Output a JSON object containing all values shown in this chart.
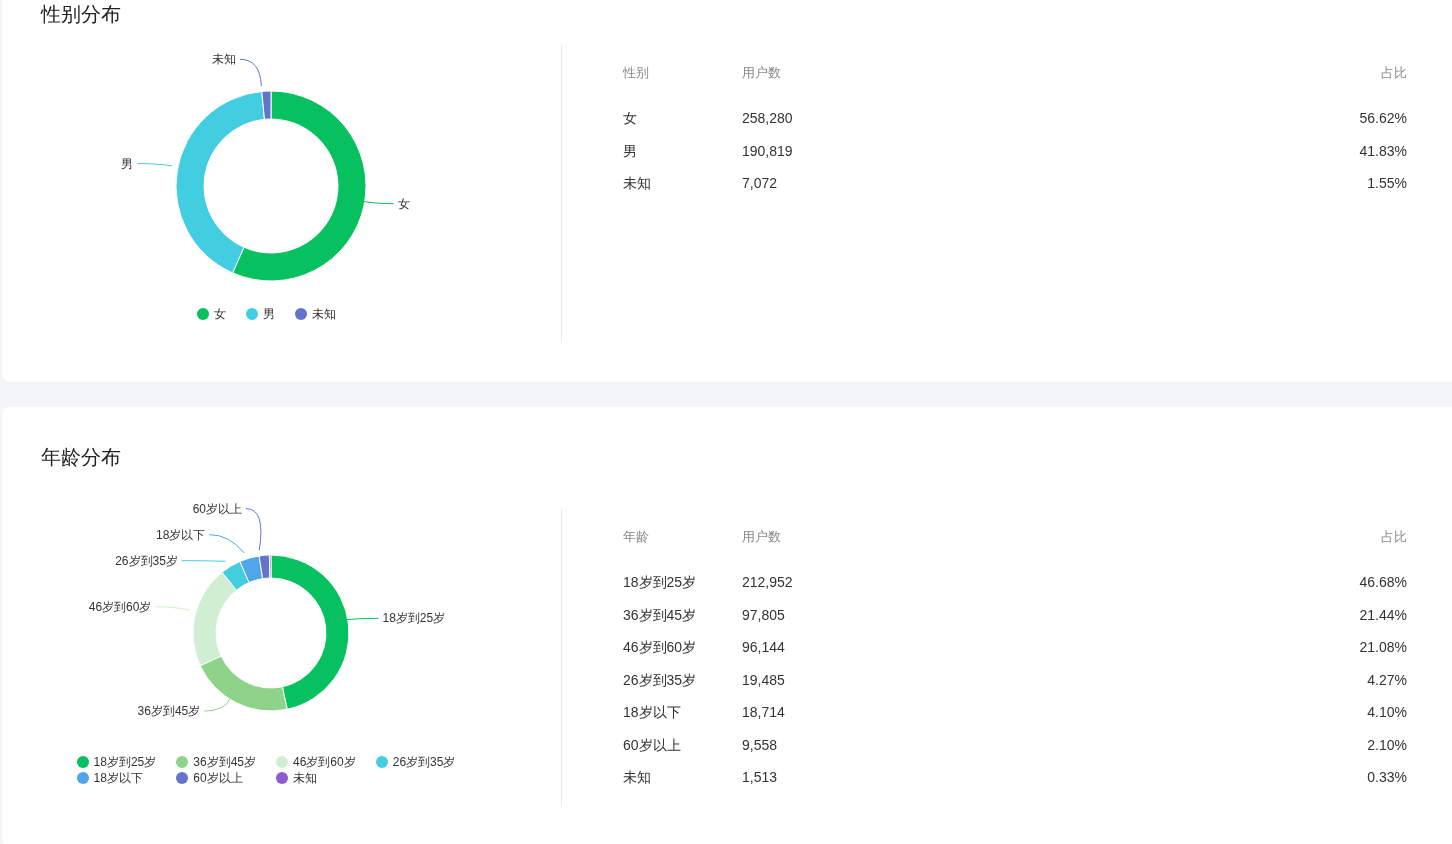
{
  "chart_data": [
    {
      "type": "donut",
      "title": "性别分布",
      "categories": [
        "女",
        "男",
        "未知"
      ],
      "values": [
        56.62,
        41.83,
        1.55
      ],
      "colors": [
        "#07c160",
        "#43cde0",
        "#6474cd"
      ],
      "legend": "bottom"
    },
    {
      "type": "other",
      "annotations": [
        "性别",
        "用户数",
        "占比",
        "女",
        "258,280",
        "56.62%",
        "男",
        "190,819",
        "41.83%",
        "未知",
        "7,072",
        "1.55%"
      ]
    },
    {
      "type": "donut",
      "title": "年龄分布",
      "categories": [
        "18岁到25岁",
        "36岁到45岁",
        "46岁到60岁",
        "26岁到35岁",
        "18岁以下",
        "60岁以上",
        "未知"
      ],
      "values": [
        46.68,
        21.44,
        21.08,
        4.27,
        4.1,
        2.1,
        0.33
      ],
      "colors": [
        "#07c160",
        "#8dd48a",
        "#d0efd2",
        "#43cde0",
        "#4fa6ea",
        "#6474cd",
        "#8e5cd1"
      ],
      "legend": "bottom"
    },
    {
      "type": "other",
      "annotations": [
        "年龄",
        "用户数",
        "占比",
        "18岁到25岁",
        "212,952",
        "46.68%",
        "36岁到45岁",
        "97,805",
        "21.44%",
        "46岁到60岁",
        "96,144",
        "21.08%",
        "26岁到35岁",
        "19,485",
        "4.27%",
        "18岁以下",
        "18,714",
        "4.10%",
        "60岁以上",
        "9,558",
        "2.10%",
        "未知",
        "1,513",
        "0.33%"
      ]
    }
  ]
}
